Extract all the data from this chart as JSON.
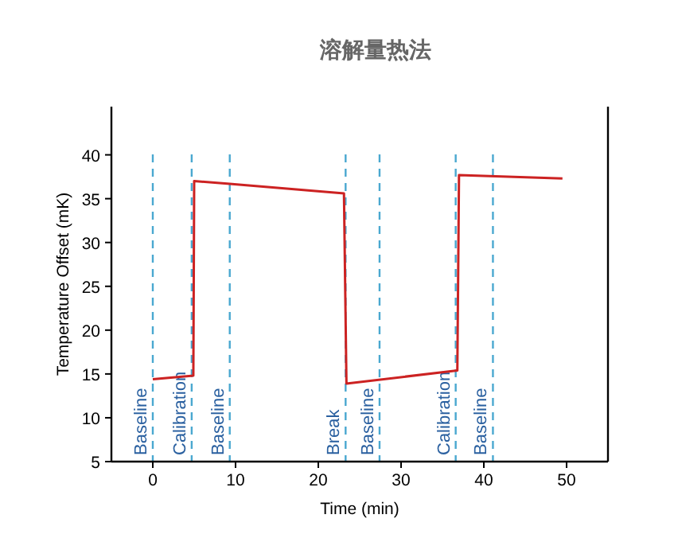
{
  "chart_data": {
    "type": "line",
    "title": "溶解量热法",
    "xlabel": "Time (min)",
    "ylabel": "Temperature Offset (mK)",
    "x": [
      0,
      4.9,
      5.0,
      9.3,
      23.1,
      23.4,
      36.8,
      37.0,
      49.5
    ],
    "series": [
      {
        "color": "#cc2222",
        "values": [
          14.4,
          14.8,
          37.0,
          36.7,
          35.6,
          13.9,
          15.4,
          37.7,
          37.3
        ]
      }
    ],
    "xlim": [
      -5,
      55
    ],
    "ylim": [
      5,
      45.5
    ],
    "xticks": [
      0,
      10,
      20,
      30,
      40,
      50
    ],
    "yticks": [
      5,
      10,
      15,
      20,
      25,
      30,
      35,
      40
    ],
    "ref_lines": [
      {
        "axis": "x",
        "value": 0,
        "label": "Baseline",
        "color": "#4aa8d0",
        "line_style": "dashed"
      },
      {
        "axis": "x",
        "value": 4.7,
        "label": "Calibration",
        "color": "#4aa8d0",
        "line_style": "dashed"
      },
      {
        "axis": "x",
        "value": 9.3,
        "label": "Baseline",
        "color": "#4aa8d0",
        "line_style": "dashed"
      },
      {
        "axis": "x",
        "value": 23.3,
        "label": "Break",
        "color": "#4aa8d0",
        "line_style": "dashed"
      },
      {
        "axis": "x",
        "value": 27.4,
        "label": "Baseline",
        "color": "#4aa8d0",
        "line_style": "dashed"
      },
      {
        "axis": "x",
        "value": 36.6,
        "label": "Calibration",
        "color": "#4aa8d0",
        "line_style": "dashed"
      },
      {
        "axis": "x",
        "value": 41.1,
        "label": "Baseline",
        "color": "#4aa8d0",
        "line_style": "dashed"
      }
    ]
  }
}
